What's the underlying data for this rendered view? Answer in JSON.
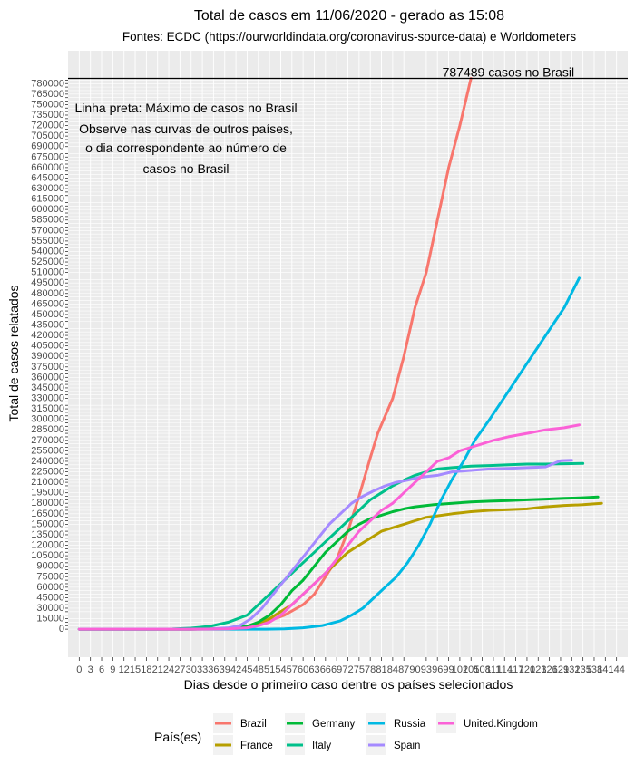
{
  "chart_data": {
    "type": "line",
    "title": "Total de casos em 11/06/2020 - gerado as 15:08",
    "subtitle": "Fontes: ECDC (https://ourworldindata.org/coronavirus-source-data) e Worldometers",
    "xlabel": "Dias desde o primeiro caso dentre os países selecionados",
    "ylabel": "Total de casos relatados",
    "xlim": [
      -3,
      147
    ],
    "ylim": [
      -40000,
      827000
    ],
    "x_ticks": [
      0,
      3,
      6,
      9,
      12,
      15,
      18,
      21,
      24,
      27,
      30,
      33,
      36,
      39,
      42,
      45,
      48,
      51,
      54,
      57,
      60,
      63,
      66,
      69,
      72,
      75,
      78,
      81,
      84,
      87,
      90,
      93,
      96,
      99,
      102,
      105,
      108,
      111,
      114,
      117,
      120,
      123,
      126,
      129,
      132,
      135,
      138,
      141,
      144
    ],
    "y_tick_step": 5000,
    "y_tick_label_step": 15000,
    "y_tick_max": 785000,
    "grid": true,
    "reference_line": {
      "value": 787489,
      "label": "787489 casos no Brasil"
    },
    "annotation": [
      "Linha preta: Máximo de casos no Brasil",
      "Observe nas curvas de outros países,",
      "o dia correspondente ao número de",
      "casos no Brasil"
    ],
    "legend_title": "País(es)",
    "legend_position": "bottom",
    "series": [
      {
        "name": "Brazil",
        "color": "#F8766D",
        "points": [
          [
            0,
            0
          ],
          [
            30,
            0
          ],
          [
            40,
            200
          ],
          [
            45,
            3000
          ],
          [
            50,
            10000
          ],
          [
            55,
            20000
          ],
          [
            60,
            35000
          ],
          [
            63,
            50000
          ],
          [
            66,
            75000
          ],
          [
            69,
            100000
          ],
          [
            72,
            140000
          ],
          [
            75,
            190000
          ],
          [
            78,
            245000
          ],
          [
            80,
            280000
          ],
          [
            84,
            330000
          ],
          [
            87,
            390000
          ],
          [
            90,
            460000
          ],
          [
            93,
            510000
          ],
          [
            96,
            585000
          ],
          [
            99,
            660000
          ],
          [
            102,
            720000
          ],
          [
            105,
            787489
          ]
        ]
      },
      {
        "name": "France",
        "color": "#B79F00",
        "points": [
          [
            0,
            0
          ],
          [
            30,
            0
          ],
          [
            40,
            1000
          ],
          [
            45,
            3000
          ],
          [
            48,
            8000
          ],
          [
            51,
            15000
          ],
          [
            54,
            25000
          ],
          [
            57,
            35000
          ],
          [
            60,
            50000
          ],
          [
            63,
            65000
          ],
          [
            66,
            80000
          ],
          [
            69,
            95000
          ],
          [
            72,
            110000
          ],
          [
            75,
            120000
          ],
          [
            78,
            130000
          ],
          [
            81,
            140000
          ],
          [
            84,
            145000
          ],
          [
            87,
            150000
          ],
          [
            90,
            155000
          ],
          [
            93,
            160000
          ],
          [
            96,
            162000
          ],
          [
            100,
            165000
          ],
          [
            105,
            168000
          ],
          [
            110,
            170000
          ],
          [
            115,
            171000
          ],
          [
            120,
            172000
          ],
          [
            125,
            175000
          ],
          [
            130,
            177000
          ],
          [
            135,
            178000
          ],
          [
            140,
            180000
          ]
        ]
      },
      {
        "name": "Germany",
        "color": "#00BA38",
        "points": [
          [
            0,
            0
          ],
          [
            30,
            0
          ],
          [
            40,
            1000
          ],
          [
            45,
            4000
          ],
          [
            48,
            10000
          ],
          [
            51,
            20000
          ],
          [
            54,
            35000
          ],
          [
            57,
            55000
          ],
          [
            60,
            70000
          ],
          [
            63,
            90000
          ],
          [
            66,
            110000
          ],
          [
            69,
            125000
          ],
          [
            72,
            140000
          ],
          [
            75,
            150000
          ],
          [
            78,
            158000
          ],
          [
            81,
            163000
          ],
          [
            84,
            168000
          ],
          [
            87,
            172000
          ],
          [
            90,
            175000
          ],
          [
            95,
            178000
          ],
          [
            100,
            180000
          ],
          [
            105,
            182000
          ],
          [
            110,
            183000
          ],
          [
            115,
            184000
          ],
          [
            120,
            185000
          ],
          [
            125,
            186000
          ],
          [
            130,
            187000
          ],
          [
            135,
            188000
          ],
          [
            139,
            189000
          ]
        ]
      },
      {
        "name": "Italy",
        "color": "#00C08B",
        "points": [
          [
            0,
            0
          ],
          [
            20,
            0
          ],
          [
            25,
            300
          ],
          [
            30,
            1500
          ],
          [
            35,
            4000
          ],
          [
            40,
            10000
          ],
          [
            45,
            20000
          ],
          [
            48,
            35000
          ],
          [
            51,
            50000
          ],
          [
            54,
            65000
          ],
          [
            57,
            80000
          ],
          [
            60,
            95000
          ],
          [
            63,
            110000
          ],
          [
            66,
            125000
          ],
          [
            69,
            140000
          ],
          [
            72,
            155000
          ],
          [
            75,
            170000
          ],
          [
            78,
            185000
          ],
          [
            81,
            195000
          ],
          [
            84,
            205000
          ],
          [
            87,
            213000
          ],
          [
            90,
            220000
          ],
          [
            93,
            225000
          ],
          [
            96,
            229000
          ],
          [
            100,
            231000
          ],
          [
            105,
            233000
          ],
          [
            110,
            234000
          ],
          [
            115,
            235000
          ],
          [
            120,
            236000
          ],
          [
            125,
            236000
          ],
          [
            130,
            236500
          ],
          [
            135,
            237000
          ]
        ]
      },
      {
        "name": "Russia",
        "color": "#00B9E3",
        "points": [
          [
            0,
            0
          ],
          [
            50,
            0
          ],
          [
            55,
            500
          ],
          [
            60,
            2000
          ],
          [
            65,
            5000
          ],
          [
            70,
            12000
          ],
          [
            73,
            20000
          ],
          [
            76,
            30000
          ],
          [
            79,
            45000
          ],
          [
            82,
            60000
          ],
          [
            85,
            75000
          ],
          [
            88,
            95000
          ],
          [
            91,
            120000
          ],
          [
            94,
            150000
          ],
          [
            97,
            185000
          ],
          [
            100,
            215000
          ],
          [
            103,
            240000
          ],
          [
            106,
            270000
          ],
          [
            110,
            300000
          ],
          [
            115,
            340000
          ],
          [
            120,
            380000
          ],
          [
            125,
            420000
          ],
          [
            130,
            460000
          ],
          [
            134,
            502000
          ]
        ]
      },
      {
        "name": "Spain",
        "color": "#A58AFF",
        "points": [
          [
            0,
            0
          ],
          [
            30,
            0
          ],
          [
            35,
            300
          ],
          [
            40,
            2000
          ],
          [
            43,
            5000
          ],
          [
            46,
            15000
          ],
          [
            49,
            30000
          ],
          [
            52,
            50000
          ],
          [
            55,
            70000
          ],
          [
            58,
            90000
          ],
          [
            61,
            110000
          ],
          [
            64,
            130000
          ],
          [
            67,
            150000
          ],
          [
            70,
            165000
          ],
          [
            73,
            180000
          ],
          [
            76,
            190000
          ],
          [
            79,
            198000
          ],
          [
            82,
            205000
          ],
          [
            85,
            210000
          ],
          [
            88,
            213000
          ],
          [
            91,
            217000
          ],
          [
            96,
            220000
          ],
          [
            100,
            225000
          ],
          [
            105,
            227000
          ],
          [
            110,
            229000
          ],
          [
            115,
            230000
          ],
          [
            120,
            231000
          ],
          [
            125,
            232000
          ],
          [
            129,
            241000
          ],
          [
            132,
            241500
          ]
        ]
      },
      {
        "name": "United.Kingdom",
        "color": "#FB61D7",
        "points": [
          [
            0,
            0
          ],
          [
            30,
            0
          ],
          [
            40,
            500
          ],
          [
            45,
            2000
          ],
          [
            48,
            5000
          ],
          [
            51,
            10000
          ],
          [
            54,
            20000
          ],
          [
            57,
            35000
          ],
          [
            60,
            50000
          ],
          [
            63,
            65000
          ],
          [
            66,
            80000
          ],
          [
            69,
            100000
          ],
          [
            72,
            120000
          ],
          [
            75,
            140000
          ],
          [
            78,
            155000
          ],
          [
            81,
            170000
          ],
          [
            84,
            180000
          ],
          [
            87,
            195000
          ],
          [
            90,
            210000
          ],
          [
            93,
            225000
          ],
          [
            96,
            240000
          ],
          [
            99,
            245000
          ],
          [
            102,
            255000
          ],
          [
            105,
            260000
          ],
          [
            108,
            265000
          ],
          [
            111,
            270000
          ],
          [
            115,
            275000
          ],
          [
            120,
            280000
          ],
          [
            125,
            285000
          ],
          [
            130,
            288000
          ],
          [
            134,
            292000
          ]
        ]
      }
    ]
  }
}
